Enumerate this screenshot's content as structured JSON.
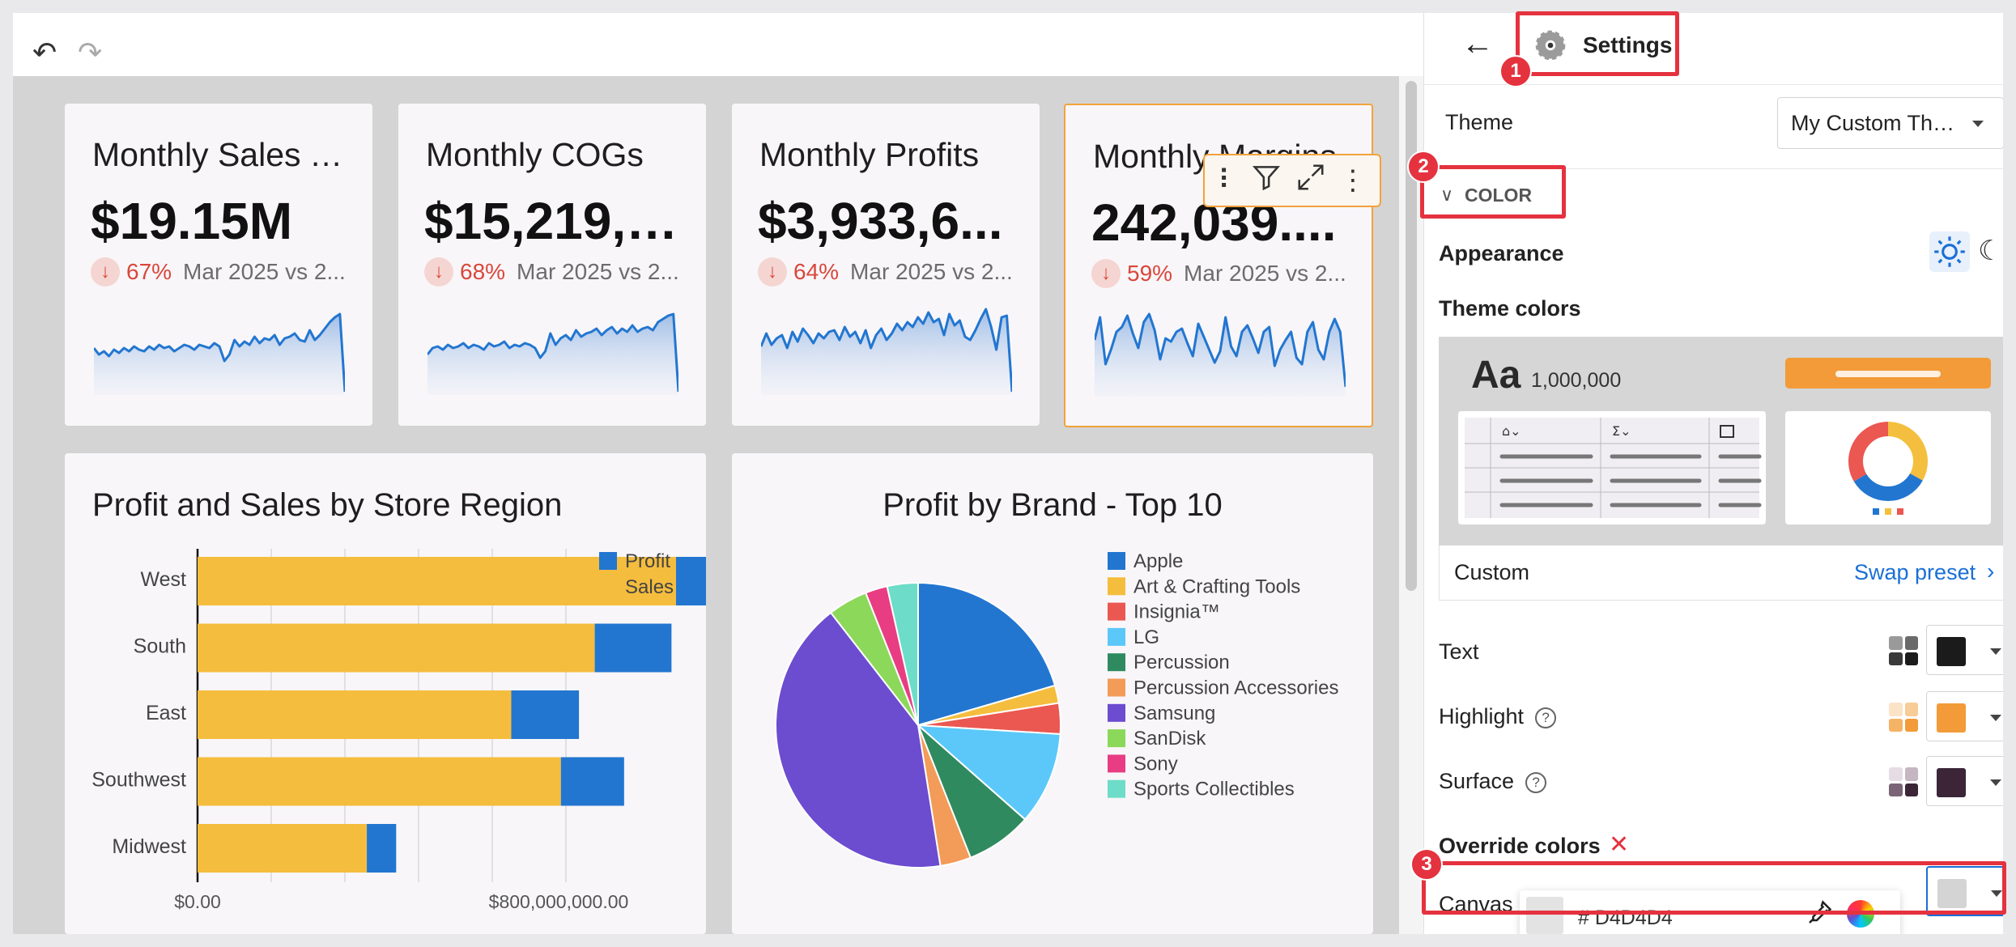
{
  "header": {
    "undo_icon": "undo-icon",
    "redo_icon": "redo-icon"
  },
  "kpis": [
    {
      "title": "Monthly Sales T...",
      "value": "$19.15M",
      "pct": "67%",
      "compare": "Mar 2025 vs 2..."
    },
    {
      "title": "Monthly COGs",
      "value": "$15,219,9...",
      "pct": "68%",
      "compare": "Mar 2025 vs 2..."
    },
    {
      "title": "Monthly Profits",
      "value": "$3,933,6...",
      "pct": "64%",
      "compare": "Mar 2025 vs 2..."
    },
    {
      "title": "Monthly Margins",
      "value": "242,039....",
      "pct": "59%",
      "compare": "Mar 2025 vs 2..."
    }
  ],
  "toolbar": {
    "icons": [
      "drag-handle-icon",
      "filter-icon",
      "expand-icon",
      "more-icon"
    ]
  },
  "chart_data": [
    {
      "type": "bar",
      "orientation": "horizontal",
      "stacked": true,
      "title": "Profit and Sales by Store Region",
      "categories": [
        "West",
        "South",
        "East",
        "Southwest",
        "Midwest"
      ],
      "series": [
        {
          "name": "Sales",
          "color": "#f5bd3d",
          "values": [
            1060000000,
            880000000,
            695000000,
            805000000,
            375000000
          ]
        },
        {
          "name": "Profit",
          "color": "#2276d0",
          "values": [
            215000000,
            170000000,
            150000000,
            140000000,
            65000000
          ]
        }
      ],
      "xtick_labels": [
        "$0.00",
        "$800,000,000.00"
      ],
      "legend": "top-right",
      "grid": true
    },
    {
      "type": "pie",
      "title": "Profit by Brand - Top 10",
      "labels": [
        "Apple",
        "Art & Crafting Tools",
        "Insignia™",
        "LG",
        "Percussion",
        "Percussion Accessories",
        "Samsung",
        "SanDisk",
        "Sony",
        "Sports Collectibles"
      ],
      "values": [
        20.5,
        2.0,
        3.5,
        10.5,
        7.5,
        3.5,
        42.0,
        4.5,
        2.5,
        3.5
      ],
      "colors": [
        "#2276d0",
        "#f5bd3d",
        "#eb5751",
        "#5bc8f9",
        "#2f8a5f",
        "#f39b58",
        "#6c4ccf",
        "#8cd85a",
        "#e83d82",
        "#6ddcc8"
      ],
      "legend": "right"
    }
  ],
  "settings": {
    "back_icon": "back-arrow-icon",
    "gear_icon": "gear-icon",
    "title": "Settings",
    "theme_label": "Theme",
    "theme_value": "My Custom The...",
    "color_section": "COLOR",
    "appearance_label": "Appearance",
    "theme_colors_label": "Theme colors",
    "preview_aa": "Aa",
    "preview_number": "1,000,000",
    "custom_label": "Custom",
    "swap_preset": "Swap preset",
    "text_label": "Text",
    "highlight_label": "Highlight",
    "surface_label": "Surface",
    "override_label": "Override colors",
    "canvas_label": "Canvas",
    "hex_value": "# D4D4D4",
    "colors": {
      "text": "#1b1b1b",
      "highlight": "#f29b38",
      "surface": "#3b2537",
      "canvas": "#d4d4d4",
      "accent_blue": "#1a6fd6"
    }
  },
  "annotations": [
    "1",
    "2",
    "3"
  ]
}
